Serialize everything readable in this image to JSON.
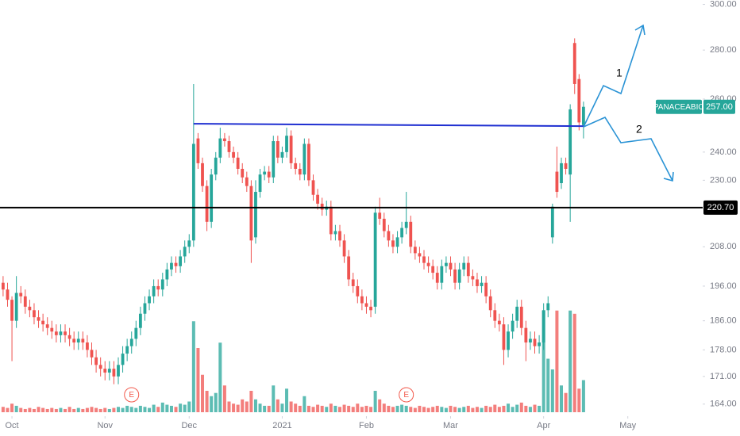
{
  "chart_data": {
    "type": "candlestick",
    "symbol": "PANACEABIO",
    "log_scale": true,
    "ylim": [
      162,
      302
    ],
    "xlim": [
      -0.7,
      157.9
    ],
    "yticks": [
      {
        "value": 300,
        "label": "300.00"
      },
      {
        "value": 280,
        "label": "280.00"
      },
      {
        "value": 260,
        "label": "260.00"
      },
      {
        "value": 240,
        "label": "240.00"
      },
      {
        "value": 230,
        "label": "230.00"
      },
      {
        "value": 208,
        "label": "208.00"
      },
      {
        "value": 196,
        "label": "196.00"
      },
      {
        "value": 186,
        "label": "186.00"
      },
      {
        "value": 178,
        "label": "178.00"
      },
      {
        "value": 171,
        "label": "171.00"
      },
      {
        "value": 164,
        "label": "164.00"
      }
    ],
    "xticks": [
      {
        "value": 2,
        "label": "Oct"
      },
      {
        "value": 23,
        "label": "Nov"
      },
      {
        "value": 42,
        "label": "Dec"
      },
      {
        "value": 63,
        "label": "2021"
      },
      {
        "value": 82,
        "label": "Feb"
      },
      {
        "value": 101,
        "label": "Mar"
      },
      {
        "value": 122,
        "label": "Apr"
      },
      {
        "value": 141,
        "label": "May"
      }
    ],
    "up_color": "#26a69a",
    "down_color": "#ef5350",
    "open": [
      197,
      195,
      192,
      186,
      194,
      193,
      190,
      189,
      187,
      186,
      185,
      184,
      183,
      182,
      183,
      182,
      181,
      180,
      181,
      180,
      178,
      176,
      174,
      173,
      172,
      173,
      171,
      174,
      177,
      179,
      181,
      184,
      188,
      191,
      193,
      196,
      195,
      198,
      201,
      203,
      202,
      205,
      208,
      210,
      245,
      236,
      228,
      216,
      232,
      238,
      245,
      244,
      240,
      238,
      234,
      231,
      228,
      211,
      226,
      232,
      233,
      231,
      244,
      238,
      240,
      246,
      236,
      234,
      232,
      243,
      230,
      225,
      222,
      220,
      221,
      212,
      213,
      210,
      205,
      198,
      196,
      193,
      191,
      190,
      190,
      219,
      217,
      213,
      210,
      208,
      211,
      214,
      216,
      208,
      206,
      205,
      203,
      202,
      200,
      197,
      202,
      203,
      201,
      197,
      201,
      203,
      199,
      198,
      196,
      197,
      193,
      189,
      186,
      185,
      178,
      183,
      186,
      190,
      184,
      180,
      181,
      179,
      180,
      189,
      211,
      233,
      229,
      236,
      232,
      283,
      268,
      250
    ],
    "high": [
      199,
      197,
      193,
      199,
      196,
      195,
      192,
      191,
      189,
      188,
      187,
      186,
      185,
      185,
      185,
      184,
      183,
      183,
      183,
      182,
      180,
      178,
      176,
      175,
      175,
      175,
      176,
      179,
      181,
      183,
      186,
      190,
      193,
      195,
      198,
      198,
      200,
      203,
      205,
      205,
      207,
      210,
      212,
      266,
      247,
      238,
      230,
      234,
      240,
      249,
      247,
      246,
      242,
      240,
      236,
      233,
      230,
      230,
      234,
      235,
      235,
      246,
      246,
      242,
      249,
      248,
      238,
      236,
      245,
      245,
      232,
      227,
      224,
      223,
      223,
      215,
      215,
      212,
      207,
      200,
      198,
      195,
      193,
      192,
      221,
      224,
      219,
      215,
      212,
      213,
      216,
      226,
      218,
      210,
      208,
      207,
      205,
      204,
      202,
      204,
      205,
      205,
      203,
      203,
      205,
      205,
      201,
      200,
      199,
      199,
      195,
      191,
      188,
      187,
      185,
      188,
      192,
      192,
      186,
      183,
      183,
      182,
      191,
      193,
      222,
      242,
      238,
      238,
      258,
      285,
      270,
      259
    ],
    "low": [
      193,
      190,
      175,
      184,
      191,
      188,
      187,
      185,
      184,
      183,
      182,
      181,
      180,
      180,
      180,
      179,
      178,
      178,
      178,
      176,
      174,
      172,
      171,
      170,
      170,
      169,
      169,
      172,
      175,
      177,
      179,
      182,
      186,
      189,
      191,
      193,
      193,
      196,
      199,
      200,
      200,
      203,
      206,
      208,
      234,
      226,
      213,
      214,
      230,
      236,
      242,
      238,
      236,
      232,
      229,
      226,
      203,
      209,
      224,
      230,
      229,
      229,
      236,
      236,
      238,
      234,
      232,
      230,
      230,
      228,
      223,
      220,
      218,
      218,
      210,
      210,
      208,
      203,
      196,
      194,
      191,
      189,
      188,
      187,
      188,
      215,
      211,
      208,
      206,
      206,
      209,
      212,
      206,
      204,
      203,
      201,
      200,
      198,
      195,
      195,
      200,
      199,
      195,
      195,
      199,
      197,
      196,
      194,
      194,
      191,
      187,
      184,
      183,
      174,
      176,
      181,
      184,
      182,
      175,
      178,
      177,
      177,
      178,
      187,
      209,
      224,
      227,
      232,
      216,
      262,
      248,
      245
    ],
    "close": [
      195,
      192,
      186,
      194,
      193,
      190,
      189,
      187,
      186,
      185,
      184,
      183,
      182,
      183,
      182,
      181,
      180,
      181,
      180,
      178,
      176,
      174,
      173,
      172,
      173,
      171,
      174,
      177,
      179,
      181,
      184,
      188,
      191,
      193,
      196,
      195,
      198,
      201,
      203,
      202,
      205,
      208,
      210,
      243,
      236,
      228,
      216,
      232,
      238,
      245,
      244,
      240,
      238,
      234,
      231,
      228,
      210,
      226,
      232,
      233,
      231,
      244,
      238,
      240,
      246,
      236,
      234,
      232,
      243,
      230,
      225,
      222,
      220,
      221,
      212,
      213,
      210,
      205,
      198,
      196,
      193,
      191,
      190,
      189,
      219,
      217,
      213,
      210,
      208,
      211,
      214,
      216,
      208,
      206,
      205,
      203,
      202,
      200,
      197,
      202,
      203,
      201,
      197,
      201,
      203,
      199,
      198,
      196,
      197,
      193,
      189,
      186,
      185,
      178,
      183,
      186,
      190,
      184,
      180,
      181,
      179,
      180,
      189,
      191,
      221,
      226,
      236,
      234,
      256,
      266,
      251,
      257
    ],
    "volume": [
      5,
      4,
      8,
      6,
      4,
      3,
      4,
      3,
      5,
      4,
      3,
      4,
      3,
      4,
      3,
      5,
      3,
      4,
      3,
      4,
      5,
      4,
      3,
      4,
      3,
      4,
      5,
      4,
      6,
      5,
      4,
      6,
      5,
      4,
      7,
      5,
      9,
      7,
      6,
      5,
      8,
      7,
      10,
      85,
      60,
      35,
      20,
      15,
      18,
      65,
      25,
      10,
      8,
      7,
      12,
      10,
      20,
      12,
      8,
      6,
      6,
      25,
      12,
      8,
      22,
      10,
      8,
      6,
      15,
      6,
      5,
      7,
      6,
      5,
      8,
      6,
      5,
      7,
      6,
      5,
      8,
      5,
      6,
      5,
      20,
      12,
      8,
      6,
      5,
      6,
      7,
      6,
      5,
      4,
      6,
      5,
      4,
      5,
      6,
      5,
      4,
      6,
      5,
      4,
      5,
      6,
      4,
      5,
      4,
      6,
      5,
      7,
      5,
      6,
      8,
      5,
      7,
      9,
      6,
      5,
      7,
      6,
      95,
      50,
      40,
      95,
      25,
      18,
      95,
      92,
      22,
      30
    ],
    "last_price": {
      "value": 257,
      "label": "257.00"
    },
    "horizontal_line": {
      "value": 220.7,
      "label": "220.70",
      "color": "#000000"
    },
    "trend_line": {
      "x": [
        43,
        131
      ],
      "y": [
        250.5,
        249.6
      ],
      "color": "#1f2fd1"
    },
    "events": [
      {
        "x": 29,
        "label": "E"
      },
      {
        "x": 91,
        "label": "E"
      }
    ],
    "annotations": [
      "1",
      "2"
    ]
  }
}
